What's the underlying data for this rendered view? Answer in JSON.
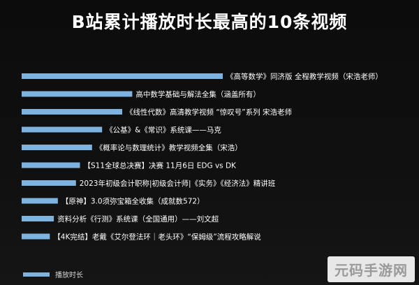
{
  "chart_data": {
    "type": "bar",
    "orientation": "horizontal",
    "title": "B站累计播放时长最高的10条视频",
    "categories": [
      "《高等数学》同济版 全程教学视频（宋浩老师）",
      "高中数学基础与解法全集（涵盖所有）",
      "《线性代数》高清教学视频 “惊叹号”系列 宋浩老师",
      "《公基》&《常识》系统课——马克",
      "《概率论与数理统计》教学视频全集（宋浩）",
      "【S11全球总决赛】决赛 11月6日 EDG vs DK",
      "2023年初级会计职称|初级会计师|《实务》《经济法》精讲班",
      "【原神】3.0须弥宝箱全收集（成就数572）",
      "资料分析《行测》系统课（全国通用）——刘文超",
      "【4K完结】老戴《艾尔登法环｜老头环》“保姆级”流程攻略解说"
    ],
    "values": [
      100,
      55,
      50,
      40,
      35,
      29,
      27,
      18,
      16,
      14
    ],
    "xlim": [
      0,
      100
    ],
    "bar_color": "#7fb3df",
    "legend": {
      "label": "播放时长",
      "position": "bottom-left"
    },
    "grid": false
  },
  "watermark": "元码手游网"
}
